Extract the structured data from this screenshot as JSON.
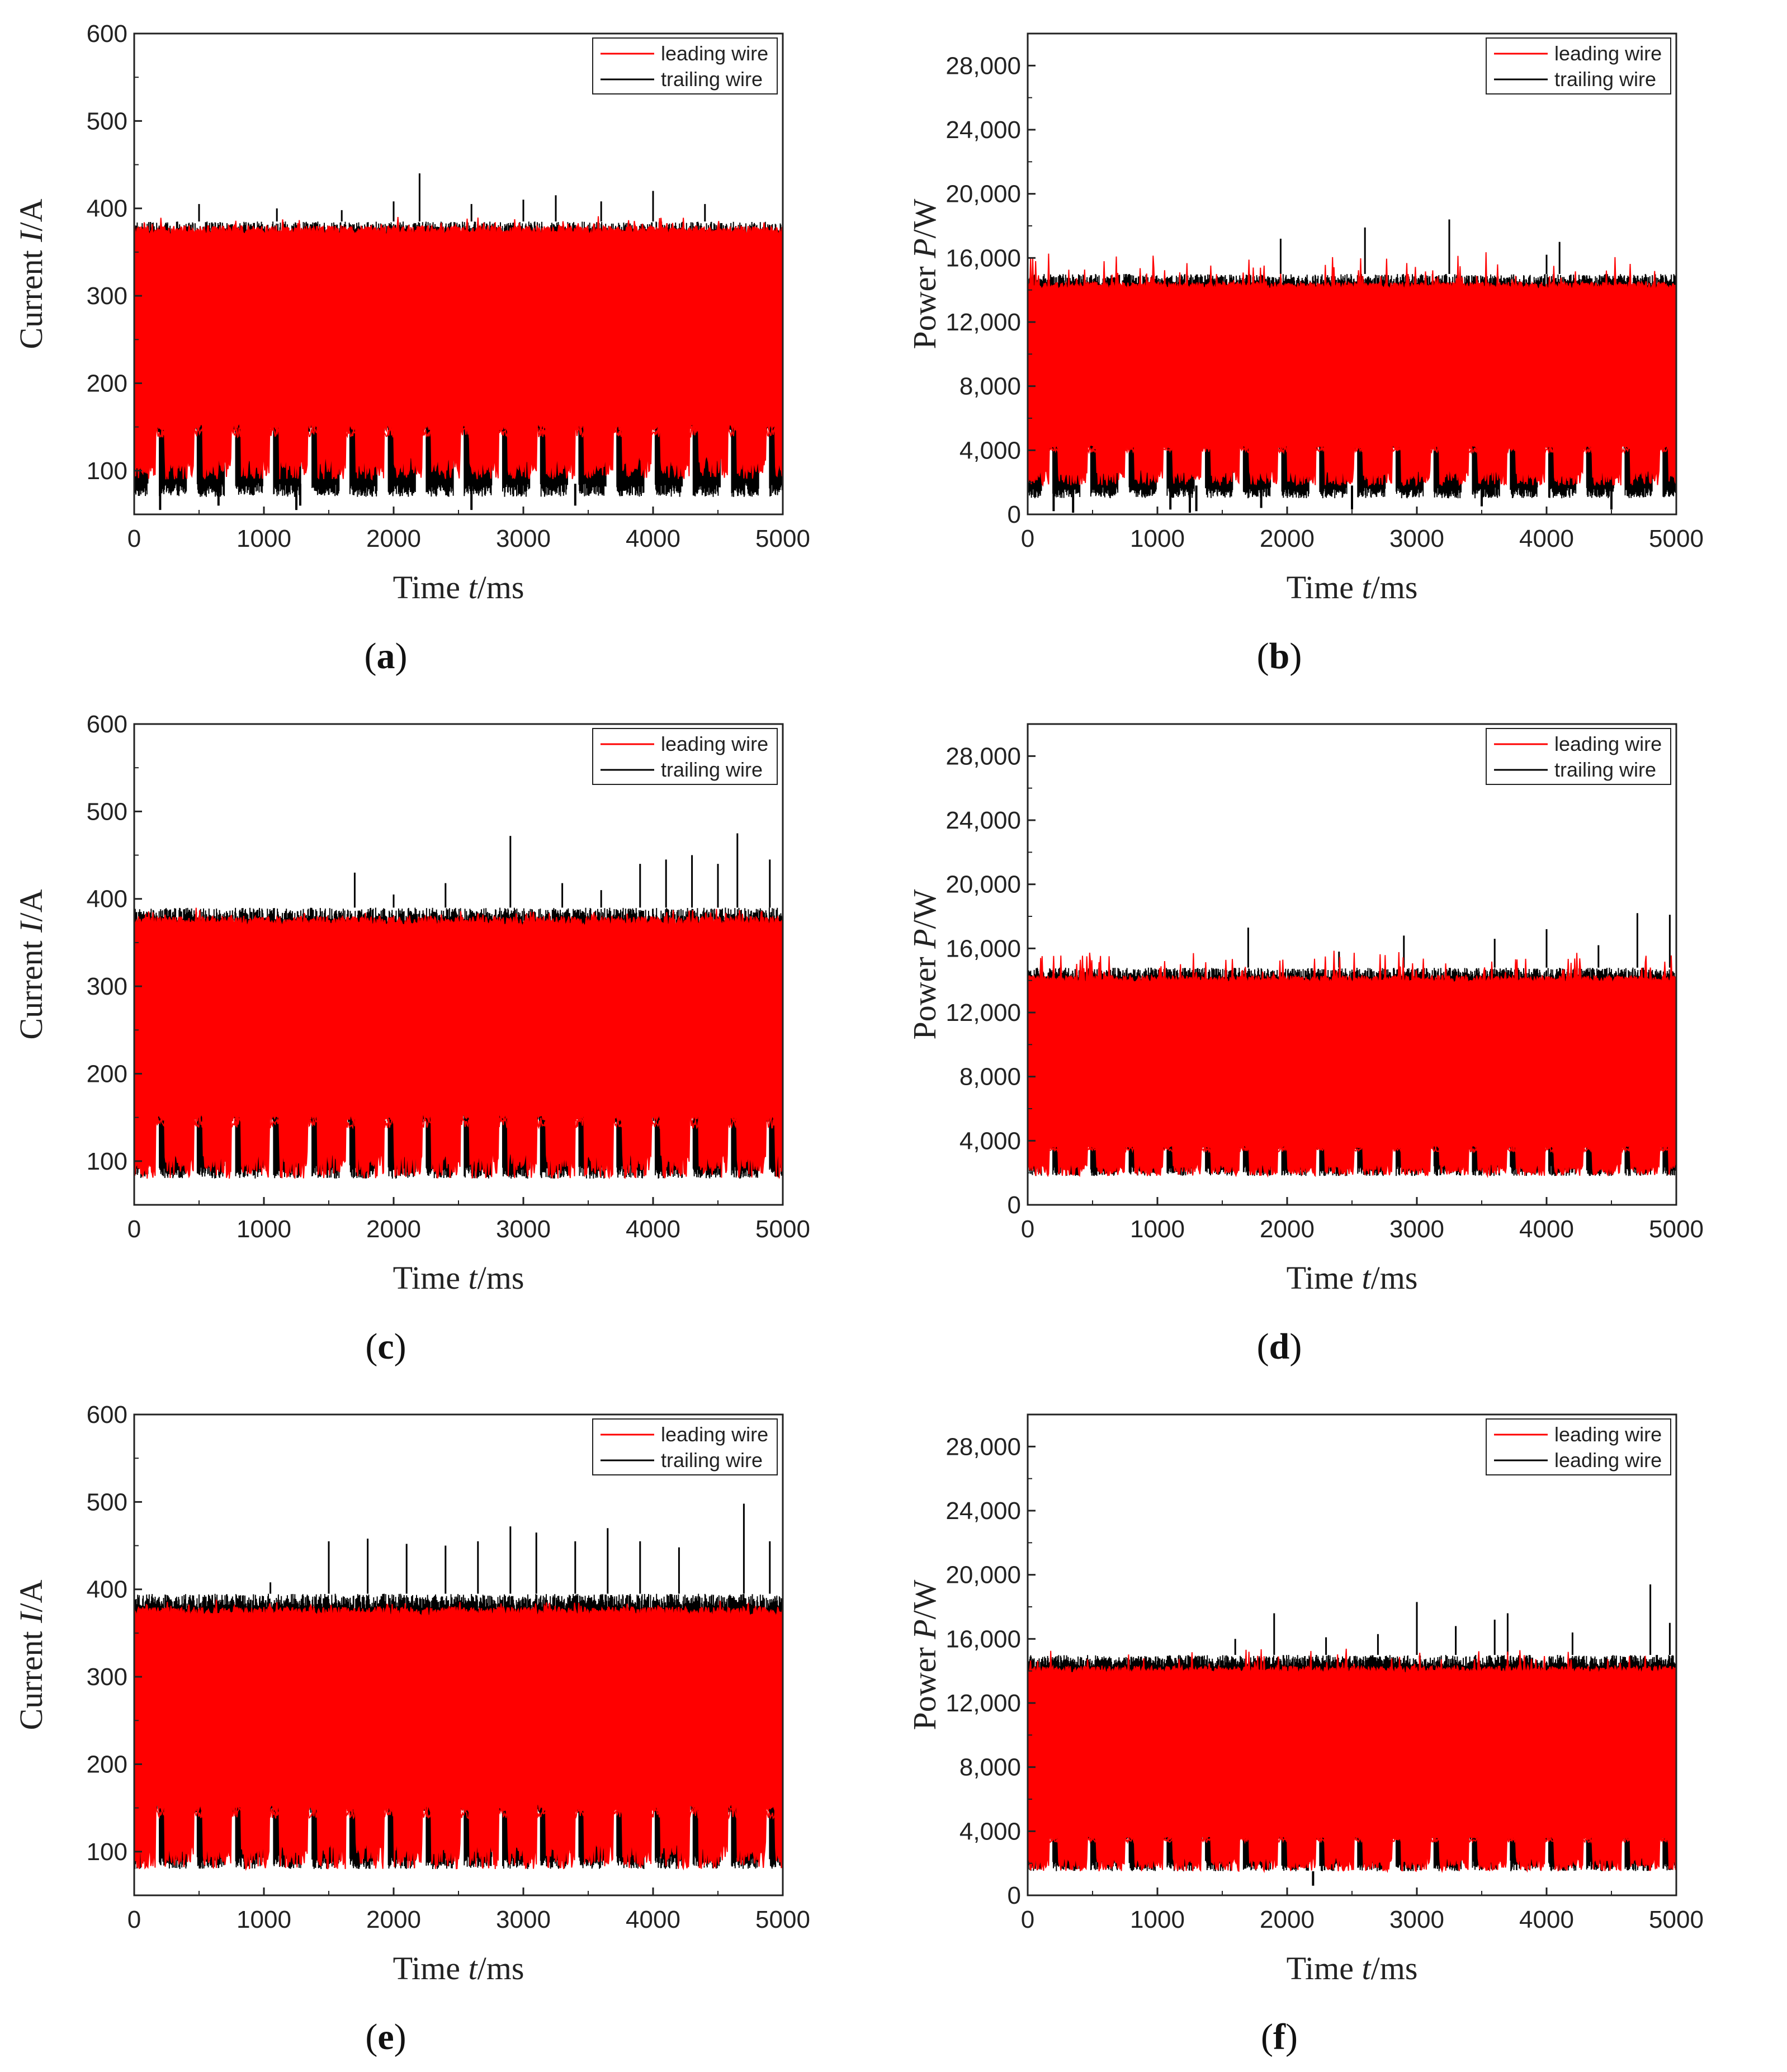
{
  "chart_data": [
    {
      "id": "a",
      "type": "line",
      "caption_letter": "a",
      "ylabel_prefix": "Current ",
      "ylabel_symbol": "I",
      "ylabel_unit": "/A",
      "xlabel_prefix": "Time ",
      "xlabel_symbol": "t",
      "xlabel_unit": "/ms",
      "xlim": [
        0,
        5000
      ],
      "ylim": [
        50,
        600
      ],
      "xticks": [
        0,
        1000,
        2000,
        3000,
        4000,
        5000
      ],
      "yticks": [
        100,
        200,
        300,
        400,
        500,
        600
      ],
      "ytick_labels": [
        "100",
        "200",
        "300",
        "400",
        "500",
        "600"
      ],
      "legend": [
        "leading wire",
        "trailing wire"
      ],
      "series": [
        {
          "name": "leading wire",
          "color": "#ff0000",
          "band": [
            90,
            380
          ],
          "gap_low": 150,
          "gap_floor": 85,
          "peak": 392
        },
        {
          "name": "trailing wire",
          "color": "#000000",
          "band": [
            70,
            385
          ],
          "spikes": [
            [
              500,
              405
            ],
            [
              1100,
              400
            ],
            [
              1600,
              398
            ],
            [
              2000,
              408
            ],
            [
              2200,
              440
            ],
            [
              2600,
              405
            ],
            [
              3000,
              410
            ],
            [
              3250,
              415
            ],
            [
              3600,
              408
            ],
            [
              4000,
              420
            ],
            [
              4400,
              405
            ]
          ],
          "dips": [
            [
              200,
              55
            ],
            [
              650,
              60
            ],
            [
              1250,
              55
            ],
            [
              1280,
              60
            ],
            [
              2600,
              55
            ],
            [
              3400,
              60
            ]
          ]
        }
      ]
    },
    {
      "id": "b",
      "type": "line",
      "caption_letter": "b",
      "ylabel_prefix": "Power ",
      "ylabel_symbol": "P",
      "ylabel_unit": "/W",
      "xlabel_prefix": "Time ",
      "xlabel_symbol": "t",
      "xlabel_unit": "/ms",
      "xlim": [
        0,
        5000
      ],
      "ylim": [
        0,
        30000
      ],
      "xticks": [
        0,
        1000,
        2000,
        3000,
        4000,
        5000
      ],
      "yticks": [
        0,
        4000,
        8000,
        12000,
        16000,
        20000,
        24000,
        28000
      ],
      "ytick_labels": [
        "0",
        "4,000",
        "8,000",
        "12,000",
        "16,000",
        "20,000",
        "24,000",
        "28,000"
      ],
      "legend": [
        "leading wire",
        "trailing wire"
      ],
      "series": [
        {
          "name": "leading wire",
          "color": "#ff0000",
          "band": [
            1800,
            14500
          ],
          "gap_low": 4200,
          "gap_floor": 1800,
          "peak": 16500
        },
        {
          "name": "trailing wire",
          "color": "#000000",
          "band": [
            1000,
            15000
          ],
          "spikes": [
            [
              1950,
              17200
            ],
            [
              2600,
              17900
            ],
            [
              3250,
              18400
            ],
            [
              4000,
              16200
            ],
            [
              4100,
              17000
            ]
          ],
          "dips": [
            [
              200,
              200
            ],
            [
              350,
              100
            ],
            [
              1100,
              300
            ],
            [
              1250,
              100
            ],
            [
              1300,
              200
            ],
            [
              1800,
              400
            ],
            [
              2500,
              300
            ],
            [
              3500,
              500
            ],
            [
              4500,
              300
            ]
          ]
        }
      ]
    },
    {
      "id": "c",
      "type": "line",
      "caption_letter": "c",
      "ylabel_prefix": "Current ",
      "ylabel_symbol": "I",
      "ylabel_unit": "/A",
      "xlabel_prefix": "Time ",
      "xlabel_symbol": "t",
      "xlabel_unit": "/ms",
      "xlim": [
        0,
        5000
      ],
      "ylim": [
        50,
        600
      ],
      "xticks": [
        0,
        1000,
        2000,
        3000,
        4000,
        5000
      ],
      "yticks": [
        100,
        200,
        300,
        400,
        500,
        600
      ],
      "ytick_labels": [
        "100",
        "200",
        "300",
        "400",
        "500",
        "600"
      ],
      "legend": [
        "leading wire",
        "trailing wire"
      ],
      "series": [
        {
          "name": "leading wire",
          "color": "#ff0000",
          "band": [
            80,
            380
          ],
          "gap_low": 150,
          "gap_floor": 80,
          "peak": 392
        },
        {
          "name": "trailing wire",
          "color": "#000000",
          "band": [
            80,
            390
          ],
          "spikes": [
            [
              1700,
              430
            ],
            [
              2000,
              405
            ],
            [
              2400,
              418
            ],
            [
              2900,
              472
            ],
            [
              3300,
              418
            ],
            [
              3600,
              410
            ],
            [
              3900,
              440
            ],
            [
              4100,
              445
            ],
            [
              4300,
              450
            ],
            [
              4500,
              440
            ],
            [
              4650,
              475
            ],
            [
              4900,
              445
            ]
          ],
          "dips": []
        }
      ]
    },
    {
      "id": "d",
      "type": "line",
      "caption_letter": "d",
      "ylabel_prefix": "Power ",
      "ylabel_symbol": "P",
      "ylabel_unit": "/W",
      "xlabel_prefix": "Time ",
      "xlabel_symbol": "t",
      "xlabel_unit": "/ms",
      "xlim": [
        0,
        5000
      ],
      "ylim": [
        0,
        30000
      ],
      "xticks": [
        0,
        1000,
        2000,
        3000,
        4000,
        5000
      ],
      "yticks": [
        0,
        4000,
        8000,
        12000,
        16000,
        20000,
        24000,
        28000
      ],
      "ytick_labels": [
        "0",
        "4,000",
        "8,000",
        "12,000",
        "16,000",
        "20,000",
        "24,000",
        "28,000"
      ],
      "legend": [
        "leading wire",
        "trailing wire"
      ],
      "series": [
        {
          "name": "leading wire",
          "color": "#ff0000",
          "band": [
            1800,
            14300
          ],
          "gap_low": 3600,
          "gap_floor": 1800,
          "peak": 16000
        },
        {
          "name": "trailing wire",
          "color": "#000000",
          "band": [
            1800,
            14800
          ],
          "spikes": [
            [
              1700,
              17300
            ],
            [
              2400,
              15800
            ],
            [
              2900,
              16800
            ],
            [
              3600,
              16600
            ],
            [
              4000,
              17200
            ],
            [
              4400,
              16200
            ],
            [
              4700,
              18200
            ],
            [
              4950,
              18100
            ]
          ],
          "dips": []
        }
      ]
    },
    {
      "id": "e",
      "type": "line",
      "caption_letter": "e",
      "ylabel_prefix": "Current ",
      "ylabel_symbol": "I",
      "ylabel_unit": "/A",
      "xlabel_prefix": "Time ",
      "xlabel_symbol": "t",
      "xlabel_unit": "/ms",
      "xlim": [
        0,
        5000
      ],
      "ylim": [
        50,
        600
      ],
      "xticks": [
        0,
        1000,
        2000,
        3000,
        4000,
        5000
      ],
      "yticks": [
        100,
        200,
        300,
        400,
        500,
        600
      ],
      "ytick_labels": [
        "100",
        "200",
        "300",
        "400",
        "500",
        "600"
      ],
      "legend": [
        "leading wire",
        "trailing wire"
      ],
      "series": [
        {
          "name": "leading wire",
          "color": "#ff0000",
          "band": [
            80,
            380
          ],
          "gap_low": 150,
          "gap_floor": 80,
          "peak": 390
        },
        {
          "name": "trailing wire",
          "color": "#000000",
          "band": [
            80,
            395
          ],
          "spikes": [
            [
              1050,
              408
            ],
            [
              1500,
              455
            ],
            [
              1800,
              458
            ],
            [
              2100,
              452
            ],
            [
              2400,
              450
            ],
            [
              2650,
              455
            ],
            [
              2900,
              472
            ],
            [
              3100,
              465
            ],
            [
              3400,
              455
            ],
            [
              3650,
              470
            ],
            [
              3900,
              455
            ],
            [
              4200,
              448
            ],
            [
              4700,
              498
            ],
            [
              4900,
              455
            ]
          ],
          "dips": []
        }
      ]
    },
    {
      "id": "f",
      "type": "line",
      "caption_letter": "f",
      "ylabel_prefix": "Power ",
      "ylabel_symbol": "P",
      "ylabel_unit": "/W",
      "xlabel_prefix": "Time ",
      "xlabel_symbol": "t",
      "xlabel_unit": "/ms",
      "xlim": [
        0,
        5000
      ],
      "ylim": [
        0,
        30000
      ],
      "xticks": [
        0,
        1000,
        2000,
        3000,
        4000,
        5000
      ],
      "yticks": [
        0,
        4000,
        8000,
        12000,
        16000,
        20000,
        24000,
        28000
      ],
      "ytick_labels": [
        "0",
        "4,000",
        "8,000",
        "12,000",
        "16,000",
        "20,000",
        "24,000",
        "28,000"
      ],
      "legend": [
        "leading wire",
        "leading wire"
      ],
      "series": [
        {
          "name": "leading wire",
          "color": "#ff0000",
          "band": [
            1500,
            14300
          ],
          "gap_low": 3600,
          "gap_floor": 1500,
          "peak": 15500
        },
        {
          "name": "leading wire",
          "color": "#000000",
          "band": [
            1500,
            15000
          ],
          "spikes": [
            [
              1600,
              16000
            ],
            [
              1900,
              17600
            ],
            [
              2300,
              16100
            ],
            [
              2700,
              16300
            ],
            [
              3000,
              18300
            ],
            [
              3300,
              16800
            ],
            [
              3600,
              17200
            ],
            [
              3700,
              17600
            ],
            [
              4200,
              16400
            ],
            [
              4800,
              19400
            ],
            [
              4950,
              17000
            ]
          ],
          "dips": [
            [
              2200,
              600
            ]
          ]
        }
      ]
    }
  ]
}
